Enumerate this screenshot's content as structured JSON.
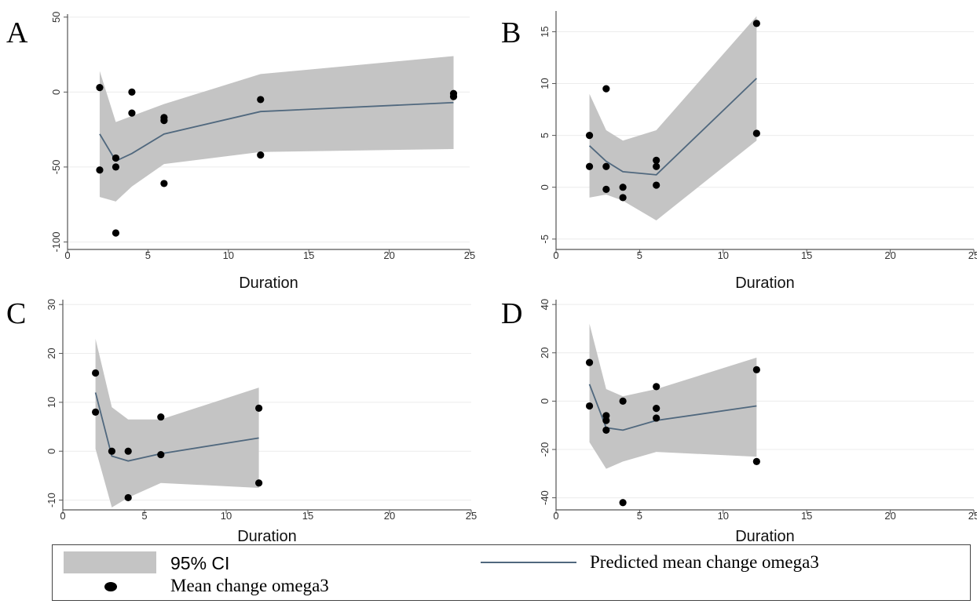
{
  "chart_data": [
    {
      "type": "line",
      "panel_label": "A",
      "xlabel": "Duration",
      "ylabel": "",
      "xlim": [
        0,
        25
      ],
      "ylim": [
        -105,
        52
      ],
      "xticks": [
        0,
        5,
        10,
        15,
        20,
        25
      ],
      "yticks": [
        -100,
        -50,
        0,
        50
      ],
      "ci_band": {
        "x": [
          2,
          3,
          4,
          6,
          12,
          24
        ],
        "upper": [
          14,
          -20,
          -16,
          -8,
          12,
          24
        ],
        "lower": [
          -70,
          -73,
          -63,
          -48,
          -40,
          -38
        ]
      },
      "predicted_line": {
        "x": [
          2,
          3,
          4,
          6,
          12,
          24
        ],
        "y": [
          -28,
          -46,
          -41,
          -28,
          -13,
          -7
        ]
      },
      "points": [
        [
          2,
          3
        ],
        [
          2,
          -52
        ],
        [
          3,
          -44
        ],
        [
          3,
          -50
        ],
        [
          3,
          -94
        ],
        [
          4,
          0
        ],
        [
          4,
          -14
        ],
        [
          6,
          -17
        ],
        [
          6,
          -19
        ],
        [
          6,
          -61
        ],
        [
          12,
          -5
        ],
        [
          12,
          -42
        ],
        [
          24,
          -1
        ],
        [
          24,
          -3
        ]
      ]
    },
    {
      "type": "line",
      "panel_label": "B",
      "xlabel": "Duration",
      "ylabel": "",
      "xlim": [
        0,
        25
      ],
      "ylim": [
        -6,
        17
      ],
      "xticks": [
        0,
        5,
        10,
        15,
        20,
        25
      ],
      "yticks": [
        -5,
        0,
        5,
        10,
        15
      ],
      "ci_band": {
        "x": [
          2,
          3,
          4,
          6,
          12
        ],
        "upper": [
          9,
          5.5,
          4.5,
          5.5,
          16.5
        ],
        "lower": [
          -1,
          -0.7,
          -1.3,
          -3.2,
          4.5
        ]
      },
      "predicted_line": {
        "x": [
          2,
          3,
          4,
          6,
          12
        ],
        "y": [
          4,
          2.5,
          1.5,
          1.2,
          10.5
        ]
      },
      "points": [
        [
          2,
          5
        ],
        [
          2,
          2
        ],
        [
          3,
          9.5
        ],
        [
          3,
          2
        ],
        [
          3,
          -0.2
        ],
        [
          4,
          0
        ],
        [
          4,
          -1
        ],
        [
          6,
          2.6
        ],
        [
          6,
          2
        ],
        [
          6,
          0.2
        ],
        [
          12,
          15.8
        ],
        [
          12,
          5.2
        ]
      ]
    },
    {
      "type": "line",
      "panel_label": "C",
      "xlabel": "Duration",
      "ylabel": "",
      "xlim": [
        0,
        25
      ],
      "ylim": [
        -12,
        31
      ],
      "xticks": [
        0,
        5,
        10,
        15,
        20,
        25
      ],
      "yticks": [
        -10,
        0,
        10,
        20,
        30
      ],
      "ci_band": {
        "x": [
          2,
          3,
          4,
          6,
          12
        ],
        "upper": [
          23,
          9,
          6.5,
          6.5,
          13
        ],
        "lower": [
          0.5,
          -11.5,
          -9.5,
          -6.5,
          -7.5
        ]
      },
      "predicted_line": {
        "x": [
          2,
          3,
          4,
          6,
          12
        ],
        "y": [
          12,
          -1,
          -2,
          -0.5,
          2.7
        ]
      },
      "points": [
        [
          2,
          16
        ],
        [
          2,
          8
        ],
        [
          3,
          0
        ],
        [
          4,
          0
        ],
        [
          4,
          -9.5
        ],
        [
          6,
          7
        ],
        [
          6,
          -0.7
        ],
        [
          12,
          8.8
        ],
        [
          12,
          -6.5
        ]
      ]
    },
    {
      "type": "line",
      "panel_label": "D",
      "xlabel": "Duration",
      "ylabel": "",
      "xlim": [
        0,
        25
      ],
      "ylim": [
        -45,
        42
      ],
      "xticks": [
        0,
        5,
        10,
        15,
        20,
        25
      ],
      "yticks": [
        -40,
        -20,
        0,
        20,
        40
      ],
      "ci_band": {
        "x": [
          2,
          3,
          4,
          6,
          12
        ],
        "upper": [
          32,
          5,
          2,
          5,
          18
        ],
        "lower": [
          -17,
          -28,
          -25,
          -21,
          -23
        ]
      },
      "predicted_line": {
        "x": [
          2,
          3,
          4,
          6,
          12
        ],
        "y": [
          7,
          -11,
          -12,
          -8,
          -2
        ]
      },
      "points": [
        [
          2,
          16
        ],
        [
          2,
          -2
        ],
        [
          3,
          -6
        ],
        [
          3,
          -8
        ],
        [
          3,
          -12
        ],
        [
          4,
          0
        ],
        [
          4,
          -42
        ],
        [
          6,
          6
        ],
        [
          6,
          -3
        ],
        [
          6,
          -7
        ],
        [
          12,
          13
        ],
        [
          12,
          -25
        ]
      ]
    }
  ],
  "legend": {
    "ci_label": "95% CI",
    "line_label": "Predicted mean change omega3",
    "point_label": "Mean change omega3"
  },
  "colors": {
    "ci_fill": "#c4c4c4",
    "line": "#50687e",
    "points": "#000000",
    "axis": "#555555",
    "grid": "#ececec"
  }
}
